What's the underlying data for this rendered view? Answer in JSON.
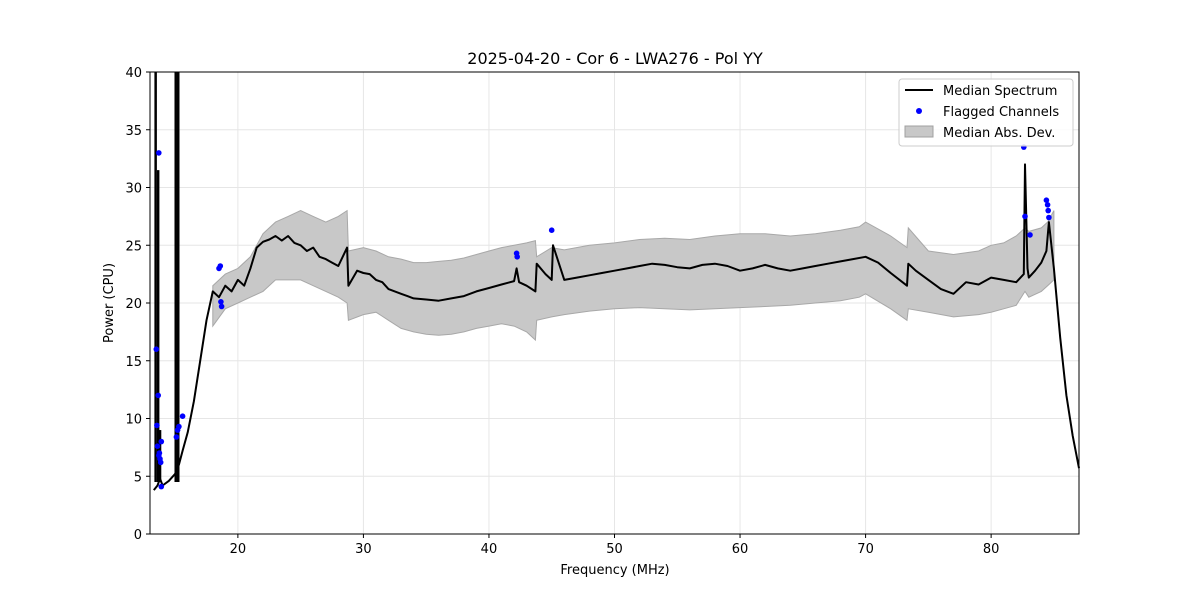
{
  "chart_data": {
    "type": "line",
    "title": "2025-04-20 - Cor 6 - LWA276 - Pol YY",
    "xlabel": "Frequency (MHz)",
    "ylabel": "Power (CPU)",
    "xlim": [
      13,
      87
    ],
    "ylim": [
      0,
      40
    ],
    "xticks": [
      20,
      30,
      40,
      50,
      60,
      70,
      80
    ],
    "yticks": [
      0,
      5,
      10,
      15,
      20,
      25,
      30,
      35,
      40
    ],
    "grid": true,
    "legend_position": "top-right",
    "legend": [
      {
        "label": "Median Spectrum",
        "kind": "line",
        "color": "#000000"
      },
      {
        "label": "Flagged Channels",
        "kind": "marker",
        "color": "#0000ff"
      },
      {
        "label": "Median Abs. Dev.",
        "kind": "band",
        "color": "#c8c8c8"
      }
    ],
    "median_spectrum": {
      "name": "Median Spectrum",
      "color": "#000000",
      "x": [
        13.3,
        13.6,
        13.8,
        14.0,
        14.5,
        15.0,
        15.3,
        15.6,
        16.0,
        16.5,
        17.0,
        17.5,
        18.0,
        18.5,
        19.0,
        19.5,
        20.0,
        20.5,
        21.0,
        21.5,
        22.0,
        22.5,
        23.0,
        23.5,
        24.0,
        24.5,
        25.0,
        25.5,
        26.0,
        26.5,
        27.0,
        27.5,
        28.0,
        28.7,
        28.8,
        29.5,
        30.0,
        30.5,
        31.0,
        31.5,
        32.0,
        32.5,
        33.0,
        33.5,
        34.0,
        35.0,
        36.0,
        37.0,
        38.0,
        39.0,
        40.0,
        41.0,
        42.0,
        42.2,
        42.4,
        43.0,
        43.7,
        43.8,
        44.5,
        45.0,
        45.1,
        46.0,
        47.0,
        48.0,
        49.0,
        50.0,
        51.0,
        52.0,
        53.0,
        54.0,
        55.0,
        56.0,
        57.0,
        58.0,
        59.0,
        60.0,
        61.0,
        62.0,
        63.0,
        64.0,
        65.0,
        66.0,
        67.0,
        68.0,
        69.0,
        70.0,
        71.0,
        72.0,
        73.3,
        73.4,
        74.0,
        75.0,
        76.0,
        77.0,
        78.0,
        79.0,
        80.0,
        81.0,
        82.0,
        82.6,
        82.7,
        82.9,
        83.0,
        83.5,
        84.0,
        84.4,
        84.6,
        85.0,
        85.5,
        86.0,
        86.5,
        87.0
      ],
      "y": [
        3.8,
        4.2,
        4.8,
        4.2,
        4.6,
        5.2,
        6.0,
        7.2,
        8.8,
        11.5,
        15.0,
        18.5,
        21.0,
        20.5,
        21.5,
        21.0,
        22.0,
        21.5,
        23.0,
        24.8,
        25.3,
        25.5,
        25.8,
        25.4,
        25.8,
        25.2,
        25.0,
        24.5,
        24.8,
        24.0,
        23.8,
        23.5,
        23.2,
        24.8,
        21.5,
        22.8,
        22.6,
        22.5,
        22.0,
        21.8,
        21.2,
        21.0,
        20.8,
        20.6,
        20.4,
        20.3,
        20.2,
        20.4,
        20.6,
        21.0,
        21.3,
        21.6,
        21.9,
        23.0,
        21.8,
        21.5,
        21.0,
        23.4,
        22.5,
        22.0,
        25.0,
        22.0,
        22.2,
        22.4,
        22.6,
        22.8,
        23.0,
        23.2,
        23.4,
        23.3,
        23.1,
        23.0,
        23.3,
        23.4,
        23.2,
        22.8,
        23.0,
        23.3,
        23.0,
        22.8,
        23.0,
        23.2,
        23.4,
        23.6,
        23.8,
        24.0,
        23.5,
        22.6,
        21.5,
        23.4,
        22.8,
        22.0,
        21.2,
        20.8,
        21.8,
        21.6,
        22.2,
        22.0,
        21.8,
        22.5,
        32.0,
        23.0,
        22.2,
        22.8,
        23.5,
        24.5,
        27.0,
        23.0,
        17.0,
        12.0,
        8.5,
        5.7
      ],
      "spikes": [
        [
          13.45,
          40
        ],
        [
          13.65,
          31.5
        ],
        [
          13.8,
          9.0
        ],
        [
          15.05,
          40
        ],
        [
          15.25,
          40
        ]
      ]
    },
    "mad_band": {
      "name": "Median Abs. Dev.",
      "color": "#c8c8c8",
      "x": [
        18.0,
        19.0,
        20.0,
        21.0,
        22.0,
        23.0,
        24.0,
        25.0,
        26.0,
        27.0,
        28.0,
        28.7,
        28.8,
        30.0,
        31.0,
        32.0,
        33.0,
        34.0,
        35.0,
        36.0,
        37.0,
        38.0,
        39.0,
        40.0,
        41.0,
        42.0,
        43.0,
        43.7,
        43.8,
        45.0,
        46.0,
        48.0,
        50.0,
        52.0,
        54.0,
        56.0,
        58.0,
        60.0,
        62.0,
        64.0,
        66.0,
        68.0,
        69.5,
        70.0,
        72.0,
        73.3,
        73.4,
        75.0,
        77.0,
        79.0,
        80.0,
        81.0,
        82.0,
        82.7,
        83.0,
        84.0,
        84.5,
        85.0
      ],
      "upper": [
        21.5,
        22.5,
        23.0,
        24.0,
        26.0,
        27.0,
        27.5,
        28.0,
        27.5,
        27.0,
        27.5,
        28.0,
        24.5,
        24.8,
        24.5,
        24.0,
        23.8,
        23.5,
        23.5,
        23.6,
        23.7,
        23.9,
        24.2,
        24.5,
        24.8,
        25.0,
        25.2,
        25.4,
        24.0,
        24.8,
        24.6,
        25.0,
        25.2,
        25.5,
        25.6,
        25.5,
        25.8,
        26.0,
        26.0,
        25.8,
        26.0,
        26.3,
        26.6,
        27.0,
        25.8,
        24.8,
        26.5,
        24.5,
        24.2,
        24.5,
        25.0,
        25.2,
        25.8,
        26.5,
        26.2,
        26.5,
        27.0,
        28.0
      ],
      "lower": [
        18.0,
        19.5,
        20.0,
        20.5,
        21.0,
        22.0,
        22.0,
        22.0,
        21.5,
        21.0,
        20.5,
        20.0,
        18.5,
        19.0,
        19.2,
        18.5,
        17.8,
        17.5,
        17.3,
        17.2,
        17.3,
        17.5,
        17.8,
        18.0,
        18.2,
        18.0,
        17.5,
        16.8,
        18.5,
        18.8,
        19.0,
        19.3,
        19.5,
        19.6,
        19.5,
        19.4,
        19.5,
        19.6,
        19.7,
        19.8,
        20.0,
        20.2,
        20.5,
        20.8,
        19.5,
        18.5,
        19.5,
        19.2,
        18.8,
        19.0,
        19.2,
        19.5,
        19.8,
        21.0,
        20.5,
        21.0,
        21.5,
        22.0
      ]
    },
    "flagged_channels": {
      "name": "Flagged Channels",
      "color": "#0000ff",
      "x": [
        13.5,
        13.7,
        13.65,
        13.55,
        13.6,
        13.75,
        13.8,
        13.85,
        13.7,
        13.9,
        13.9,
        15.1,
        15.2,
        15.3,
        15.6,
        18.5,
        18.6,
        18.65,
        18.7,
        42.2,
        42.25,
        45.0,
        82.6,
        82.7,
        83.1,
        84.4,
        84.5,
        84.55,
        84.6
      ],
      "y": [
        16.0,
        33.0,
        12.0,
        9.4,
        7.6,
        7.0,
        6.5,
        6.2,
        6.8,
        8.0,
        4.1,
        8.4,
        9.0,
        9.3,
        10.2,
        23.0,
        23.2,
        20.1,
        19.7,
        24.3,
        24.0,
        26.3,
        33.5,
        27.5,
        25.9,
        28.9,
        28.5,
        28.0,
        27.4
      ]
    }
  }
}
